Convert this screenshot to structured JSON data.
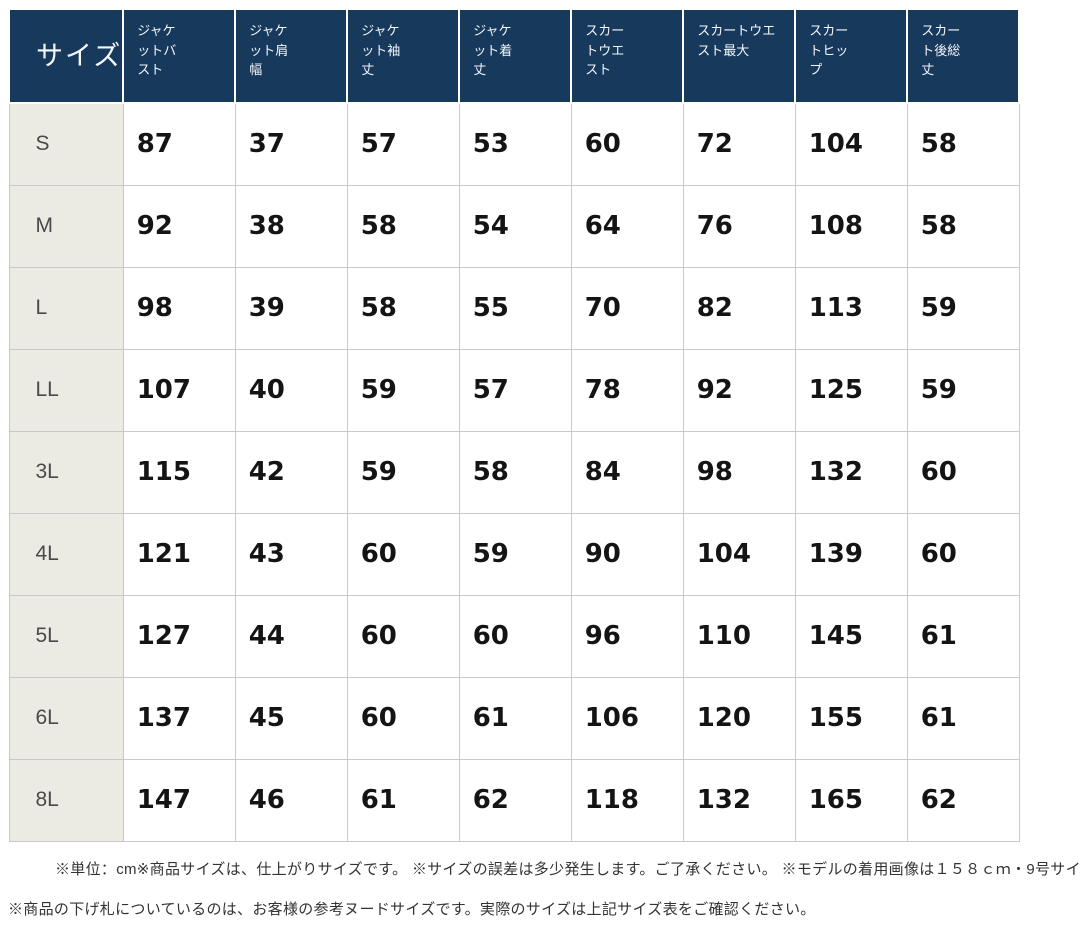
{
  "table": {
    "corner_label": "サイズ",
    "columns": [
      "ジャケ\nットバ\nスト",
      "ジャケ\nット肩\n幅",
      "ジャケ\nット袖\n丈",
      "ジャケ\nット着\n丈",
      "スカー\nトウエ\nスト",
      "スカートウエ\nスト最大",
      "スカー\nトヒッ\nプ",
      "スカー\nト後総\n丈"
    ],
    "rows": [
      {
        "size": "S",
        "values": [
          87,
          37,
          57,
          53,
          60,
          72,
          104,
          58
        ]
      },
      {
        "size": "M",
        "values": [
          92,
          38,
          58,
          54,
          64,
          76,
          108,
          58
        ]
      },
      {
        "size": "L",
        "values": [
          98,
          39,
          58,
          55,
          70,
          82,
          113,
          59
        ]
      },
      {
        "size": "LL",
        "values": [
          107,
          40,
          59,
          57,
          78,
          92,
          125,
          59
        ]
      },
      {
        "size": "3L",
        "values": [
          115,
          42,
          59,
          58,
          84,
          98,
          132,
          60
        ]
      },
      {
        "size": "4L",
        "values": [
          121,
          43,
          60,
          59,
          90,
          104,
          139,
          60
        ]
      },
      {
        "size": "5L",
        "values": [
          127,
          44,
          60,
          60,
          96,
          110,
          145,
          61
        ]
      },
      {
        "size": "6L",
        "values": [
          137,
          45,
          60,
          61,
          106,
          120,
          155,
          61
        ]
      },
      {
        "size": "8L",
        "values": [
          147,
          46,
          61,
          62,
          118,
          132,
          165,
          62
        ]
      }
    ]
  },
  "footnotes": {
    "line1": "※単位：cm※商品サイズは、仕上がりサイズです。 ※サイズの誤差は多少発生します。ご了承ください。 ※モデルの着用画像は１５８ｃｍ・9号サイ",
    "line2": "※商品の下げ札についているのは、お客様の参考ヌードサイズです。実際のサイズは上記サイズ表をご確認ください。"
  },
  "colors": {
    "header_bg": "#17395C",
    "header_text": "#F4F7FA",
    "row_label_bg": "#EBEAE3",
    "cell_border": "#C9C9C9",
    "value_text": "#141414"
  }
}
